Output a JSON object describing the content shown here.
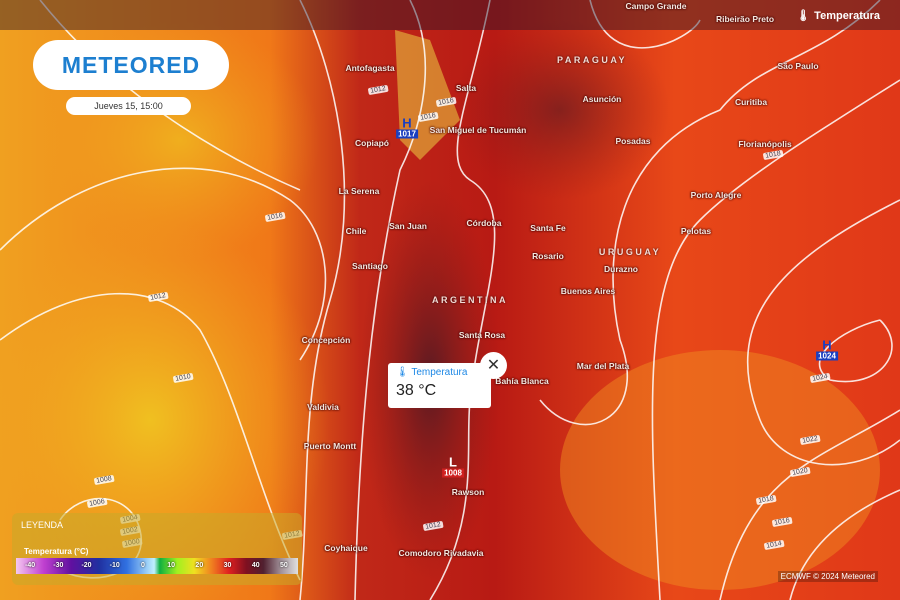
{
  "header": {
    "brand": "METEORED",
    "date": "Jueves 15, 15:00",
    "layer_label": "Temperatura"
  },
  "countries": [
    {
      "name": "PARAGUAY"
    },
    {
      "name": "ARGENTINA"
    },
    {
      "name": "URUGUAY"
    }
  ],
  "cities": [
    "Campo Grande",
    "Ribeirão Preto",
    "Antofagasta",
    "Salta",
    "San Miguel de Tucumán",
    "Copiapó",
    "Asunción",
    "Posadas",
    "São Paulo",
    "Curitiba",
    "Florianópolis",
    "Porto Alegre",
    "Pelotas",
    "La Serena",
    "San Juan",
    "Córdoba",
    "Santa Fe",
    "Rosario",
    "Chile",
    "Santiago",
    "Durazno",
    "Buenos Aires",
    "Concepción",
    "Santa Rosa",
    "Bahía Blanca",
    "Mar del Plata",
    "Valdivia",
    "Puerto Montt",
    "Rawson",
    "Coyhaique",
    "Comodoro Rivadavia"
  ],
  "isobar_labels": [
    "1012",
    "1016",
    "1016",
    "1016",
    "1012",
    "1010",
    "1008",
    "1006",
    "1004",
    "1002",
    "1000",
    "1012",
    "1012",
    "1018",
    "1022",
    "1020",
    "1018",
    "1016",
    "1014",
    "1024"
  ],
  "pressure_centers": [
    {
      "type": "H",
      "value": "1017",
      "color": "#1a3fc0"
    },
    {
      "type": "L",
      "value": "1008",
      "color": "#d02020"
    },
    {
      "type": "H",
      "value": "1024",
      "color": "#1a3fc0"
    }
  ],
  "popup": {
    "title": "Temperatura",
    "value": "38 °C",
    "icon": "thermometer-icon",
    "close_icon": "close-icon"
  },
  "legend": {
    "title": "LEYENDA",
    "subtitle": "Temperatura (°C)",
    "ticks": [
      "-40",
      "-30",
      "-20",
      "-10",
      "0",
      "10",
      "20",
      "30",
      "40",
      "50"
    ]
  },
  "credit": "ECMWF © 2024 Meteored"
}
